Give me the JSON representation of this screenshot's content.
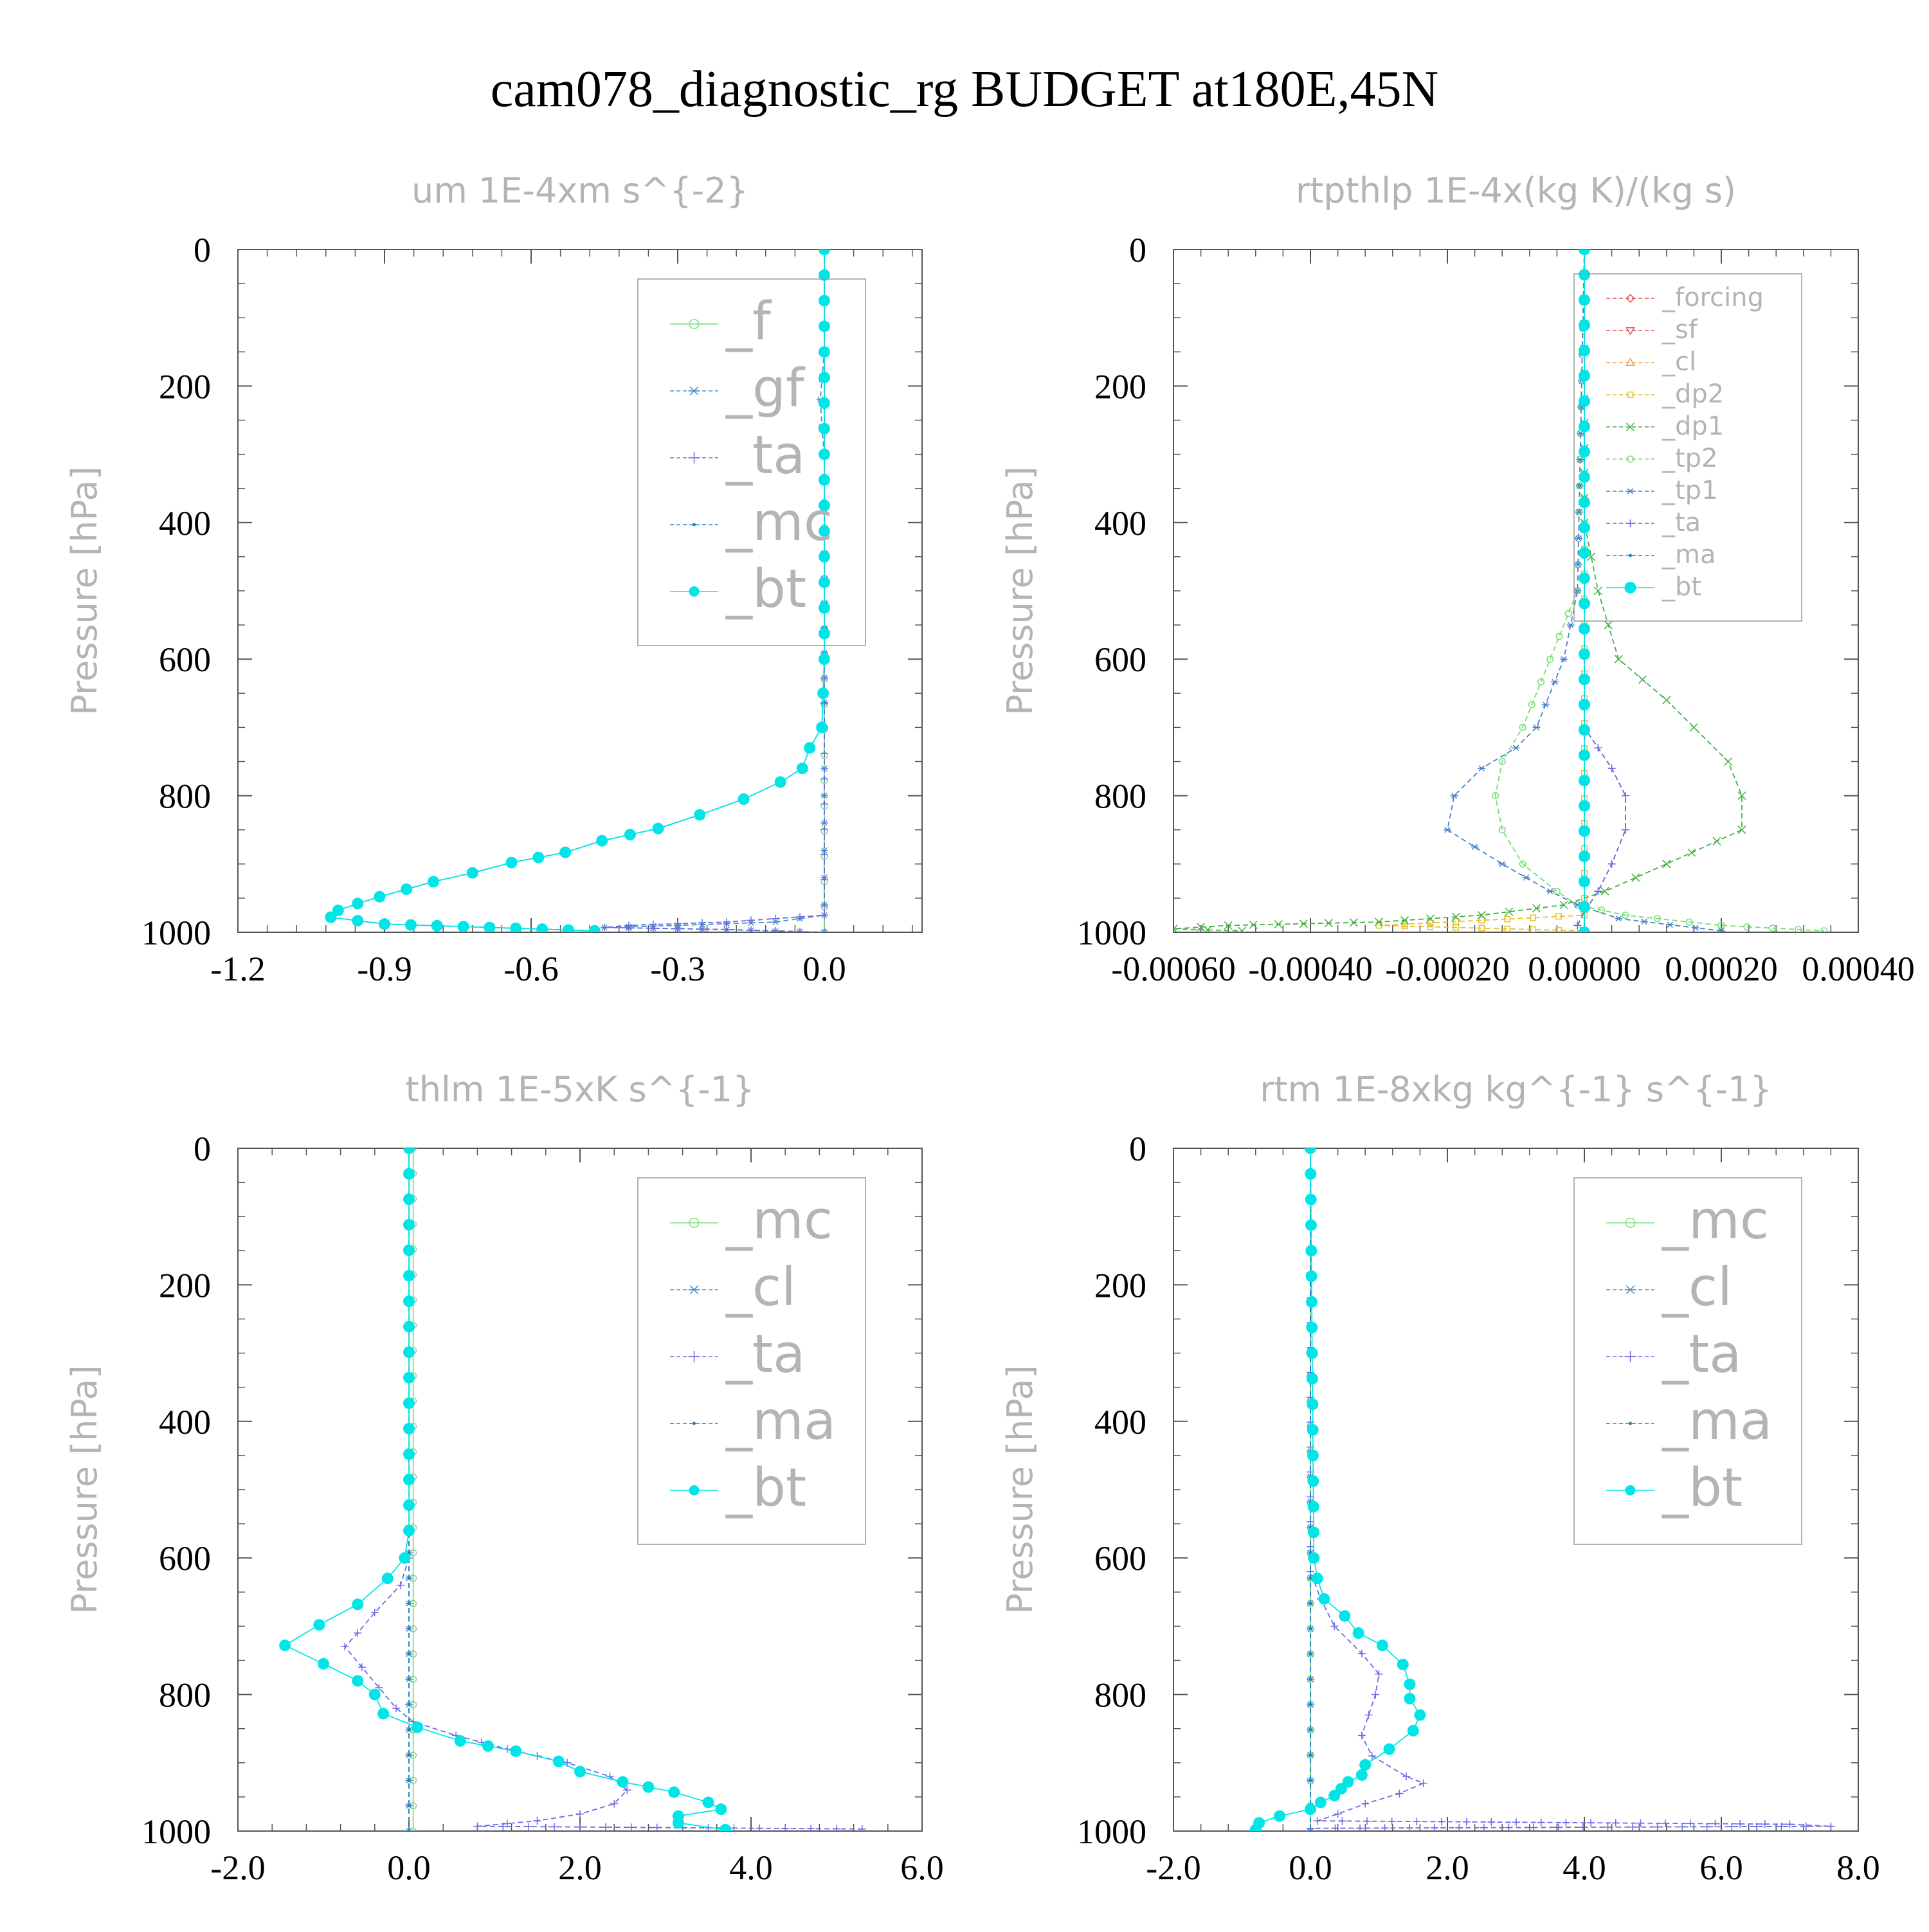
{
  "page_title": "cam078_diagnostic_rg  BUDGET at180E,45N",
  "chart_data": [
    {
      "type": "line",
      "title": "um  1E-4xm s^{-2}",
      "ylabel": "Pressure [hPa]",
      "xlabel": "",
      "xlim": [
        -1.2,
        0.2
      ],
      "ylim": [
        1000,
        0
      ],
      "y_inverted": true,
      "xticks": [
        -1.2,
        -0.9,
        -0.6,
        -0.3,
        0.0
      ],
      "xtick_labels": [
        "-1.2",
        "-0.9",
        "-0.6",
        "-0.3",
        "0.0"
      ],
      "yticks": [
        0,
        200,
        400,
        600,
        800,
        1000
      ],
      "ytick_labels": [
        "0",
        "200",
        "400",
        "600",
        "800",
        "1000"
      ],
      "legend_position": "top-right",
      "legend_font": "large",
      "series": [
        {
          "name": "_f",
          "color": "#7fe07f",
          "marker": "circle-open",
          "dash": "solid",
          "y": [
            0,
            1000
          ],
          "x": [
            0.0,
            0.0
          ]
        },
        {
          "name": "_gf",
          "color": "#4a90c8",
          "marker": "asterisk",
          "dash": "dashed",
          "y": [
            0,
            150,
            190,
            220,
            260,
            300,
            700,
            760,
            960,
            975,
            985,
            990,
            993,
            996,
            1000
          ],
          "x": [
            0.0,
            0.0,
            -0.005,
            -0.008,
            -0.005,
            0.0,
            0.0,
            0.0,
            0.0,
            0.0,
            -0.1,
            -0.3,
            -0.45,
            -0.2,
            0.0
          ]
        },
        {
          "name": "_ta",
          "color": "#6a6ae6",
          "marker": "plus",
          "dash": "dashed",
          "y": [
            0,
            960,
            975,
            985,
            990,
            993,
            996,
            1000
          ],
          "x": [
            0.0,
            0.0,
            0.0,
            -0.2,
            -0.4,
            -0.45,
            -0.2,
            0.0
          ]
        },
        {
          "name": "_mc",
          "color": "#2080c0",
          "marker": "dot",
          "dash": "dashed",
          "y": [
            0,
            600,
            700,
            730,
            760,
            780,
            805,
            828,
            848,
            866,
            883,
            898,
            913,
            926,
            937,
            948,
            958,
            968,
            978,
            988,
            998
          ],
          "x": [
            0.0,
            0.0,
            -0.005,
            -0.03,
            -0.045,
            -0.09,
            -0.165,
            -0.255,
            -0.34,
            -0.455,
            -0.53,
            -0.64,
            -0.72,
            -0.8,
            -0.855,
            -0.91,
            -0.955,
            -0.995,
            -1.01,
            -0.9,
            -0.47
          ]
        },
        {
          "name": "_bt",
          "color": "#00e6e6",
          "marker": "filled-circle",
          "dash": "solid",
          "y": [
            0,
            600,
            700,
            730,
            760,
            780,
            805,
            828,
            848,
            866,
            883,
            898,
            913,
            926,
            937,
            948,
            958,
            968,
            978,
            988,
            998
          ],
          "x": [
            0.0,
            0.0,
            -0.005,
            -0.03,
            -0.045,
            -0.09,
            -0.165,
            -0.255,
            -0.34,
            -0.455,
            -0.53,
            -0.64,
            -0.72,
            -0.8,
            -0.855,
            -0.91,
            -0.955,
            -0.995,
            -1.01,
            -0.9,
            -0.47
          ]
        }
      ]
    },
    {
      "type": "line",
      "title": "rtpthlp  1E-4x(kg K)/(kg s)",
      "ylabel": "Pressure [hPa]",
      "xlabel": "",
      "xlim": [
        -0.0006,
        0.0004
      ],
      "ylim": [
        1000,
        0
      ],
      "y_inverted": true,
      "xticks": [
        -0.0006,
        -0.0004,
        -0.0002,
        0.0,
        0.0002,
        0.0004
      ],
      "xtick_labels": [
        "-0.00060",
        "-0.00040",
        "-0.00020",
        "0.00000",
        "0.00020",
        "0.00040"
      ],
      "yticks": [
        0,
        200,
        400,
        600,
        800,
        1000
      ],
      "ytick_labels": [
        "0",
        "200",
        "400",
        "600",
        "800",
        "1000"
      ],
      "legend_position": "top-right",
      "legend_font": "small",
      "series": [
        {
          "name": "_forcing",
          "color": "#e05050",
          "marker": "diamond-open",
          "dash": "dashed",
          "y": [
            0,
            1000
          ],
          "x": [
            0.0,
            0.0
          ]
        },
        {
          "name": "_sf",
          "color": "#e05050",
          "marker": "triangle-down-open",
          "dash": "dashed",
          "y": [
            0,
            1000
          ],
          "x": [
            0.0,
            0.0
          ]
        },
        {
          "name": "_cl",
          "color": "#f0a040",
          "marker": "triangle-up-open",
          "dash": "dashed",
          "y": [
            0,
            1000
          ],
          "x": [
            0.0,
            0.0
          ]
        },
        {
          "name": "_dp2",
          "color": "#e8c020",
          "marker": "square-open",
          "dash": "dashed",
          "y": [
            0,
            950,
            975,
            990,
            998
          ],
          "x": [
            0.0,
            0.0,
            0.0,
            -0.0003,
            0.0
          ]
        },
        {
          "name": "_dp1",
          "color": "#40b040",
          "marker": "cross",
          "dash": "dashed",
          "y": [
            0,
            400,
            500,
            600,
            660,
            700,
            750,
            800,
            850,
            900,
            940,
            960,
            975,
            985,
            990,
            995,
            998
          ],
          "x": [
            0.0,
            0.0,
            2e-05,
            5e-05,
            0.00012,
            0.00016,
            0.00021,
            0.00023,
            0.00023,
            0.00012,
            3e-05,
            -3e-05,
            -0.00015,
            -0.0003,
            -0.00052,
            -0.0006,
            -0.0005
          ]
        },
        {
          "name": "_tp2",
          "color": "#70e070",
          "marker": "circle-open",
          "dash": "dashed",
          "y": [
            0,
            500,
            600,
            700,
            750,
            800,
            850,
            900,
            940,
            960,
            975,
            990,
            998
          ],
          "x": [
            0.0,
            -1e-05,
            -5e-05,
            -9e-05,
            -0.00012,
            -0.00013,
            -0.00012,
            -9e-05,
            -4e-05,
            -1e-05,
            6e-05,
            0.0002,
            0.00035
          ]
        },
        {
          "name": "_tp1",
          "color": "#4a80d0",
          "marker": "asterisk",
          "dash": "dashed",
          "y": [
            0,
            500,
            600,
            700,
            730,
            760,
            800,
            850,
            900,
            940,
            960,
            980,
            998
          ],
          "x": [
            0.0,
            -1e-05,
            -3e-05,
            -7e-05,
            -0.0001,
            -0.00015,
            -0.00019,
            -0.0002,
            -0.00012,
            -5e-05,
            -1e-05,
            5e-05,
            0.0002
          ]
        },
        {
          "name": "_ta",
          "color": "#6060e0",
          "marker": "plus",
          "dash": "dashed",
          "y": [
            0,
            700,
            760,
            800,
            850,
            900,
            940,
            970,
            990,
            998
          ],
          "x": [
            0.0,
            0.0,
            4e-05,
            6e-05,
            6e-05,
            4e-05,
            2e-05,
            0.0,
            -1e-05,
            0.0
          ]
        },
        {
          "name": "_ma",
          "color": "#2080c0",
          "marker": "dot",
          "dash": "dashed",
          "y": [
            0,
            1000
          ],
          "x": [
            0.0,
            0.0
          ]
        },
        {
          "name": "_bt",
          "color": "#00e6e6",
          "marker": "filled-circle",
          "dash": "solid",
          "y": [
            0,
            1000
          ],
          "x": [
            0.0,
            0.0
          ]
        }
      ]
    },
    {
      "type": "line",
      "title": "thlm  1E-5xK s^{-1}",
      "ylabel": "Pressure [hPa]",
      "xlabel": "",
      "xlim": [
        -2.0,
        6.0
      ],
      "ylim": [
        1000,
        0
      ],
      "y_inverted": true,
      "xticks": [
        -2.0,
        0.0,
        2.0,
        4.0,
        6.0
      ],
      "xtick_labels": [
        "-2.0",
        "0.0",
        "2.0",
        "4.0",
        "6.0"
      ],
      "yticks": [
        0,
        200,
        400,
        600,
        800,
        1000
      ],
      "ytick_labels": [
        "0",
        "200",
        "400",
        "600",
        "800",
        "1000"
      ],
      "legend_position": "top-right",
      "legend_font": "large",
      "series": [
        {
          "name": "_mc",
          "color": "#7fe07f",
          "marker": "circle-open",
          "dash": "solid",
          "y": [
            0,
            1000
          ],
          "x": [
            0.05,
            0.05
          ]
        },
        {
          "name": "_cl",
          "color": "#4a90c8",
          "marker": "asterisk",
          "dash": "dashed",
          "y": [
            0,
            1000
          ],
          "x": [
            0.0,
            0.0
          ]
        },
        {
          "name": "_ta",
          "color": "#6a6ae6",
          "marker": "plus",
          "dash": "dashed",
          "y": [
            0,
            600,
            640,
            680,
            710,
            730,
            760,
            790,
            820,
            840,
            860,
            880,
            900,
            920,
            940,
            960,
            975,
            985,
            993,
            997
          ],
          "x": [
            0.0,
            0.0,
            -0.1,
            -0.4,
            -0.6,
            -0.75,
            -0.55,
            -0.35,
            -0.15,
            0.05,
            0.55,
            1.15,
            1.85,
            2.35,
            2.55,
            2.4,
            2.0,
            1.5,
            0.8,
            5.3
          ]
        },
        {
          "name": "_ma",
          "color": "#2080c0",
          "marker": "dot",
          "dash": "dashed",
          "y": [
            0,
            1000
          ],
          "x": [
            0.0,
            0.0
          ]
        },
        {
          "name": "_bt",
          "color": "#00e6e6",
          "marker": "filled-circle",
          "dash": "solid",
          "y": [
            0,
            560,
            600,
            630,
            668,
            698,
            728,
            755,
            780,
            800,
            828,
            848,
            868,
            883,
            898,
            913,
            928,
            943,
            958,
            968,
            978,
            988,
            998
          ],
          "x": [
            0.0,
            0.0,
            -0.05,
            -0.25,
            -0.6,
            -1.05,
            -1.45,
            -1.0,
            -0.6,
            -0.4,
            -0.3,
            0.1,
            0.6,
            1.25,
            1.75,
            2.0,
            2.5,
            3.1,
            3.5,
            3.65,
            3.15,
            3.15,
            3.7
          ]
        }
      ]
    },
    {
      "type": "line",
      "title": "rtm  1E-8xkg kg^{-1} s^{-1}",
      "ylabel": "Pressure [hPa]",
      "xlabel": "",
      "xlim": [
        -2.0,
        8.0
      ],
      "ylim": [
        1000,
        0
      ],
      "y_inverted": true,
      "xticks": [
        -2.0,
        0.0,
        2.0,
        4.0,
        6.0,
        8.0
      ],
      "xtick_labels": [
        "-2.0",
        "0.0",
        "2.0",
        "4.0",
        "6.0",
        "8.0"
      ],
      "yticks": [
        0,
        200,
        400,
        600,
        800,
        1000
      ],
      "ytick_labels": [
        "0",
        "200",
        "400",
        "600",
        "800",
        "1000"
      ],
      "legend_position": "top-right",
      "legend_font": "large",
      "series": [
        {
          "name": "_mc",
          "color": "#7fe07f",
          "marker": "circle-open",
          "dash": "solid",
          "y": [
            0,
            1000
          ],
          "x": [
            0.0,
            0.0
          ]
        },
        {
          "name": "_cl",
          "color": "#4a90c8",
          "marker": "asterisk",
          "dash": "dashed",
          "y": [
            0,
            1000
          ],
          "x": [
            0.0,
            0.0
          ]
        },
        {
          "name": "_ta",
          "color": "#6a6ae6",
          "marker": "plus",
          "dash": "dashed",
          "y": [
            0,
            620,
            660,
            700,
            740,
            770,
            800,
            830,
            860,
            890,
            920,
            930,
            945,
            960,
            975,
            985,
            990,
            993,
            996
          ],
          "x": [
            0.0,
            0.0,
            0.15,
            0.35,
            0.75,
            1.0,
            0.95,
            0.85,
            0.75,
            0.9,
            1.4,
            1.65,
            1.3,
            0.8,
            0.4,
            0.1,
            7.0,
            7.6,
            0.0
          ]
        },
        {
          "name": "_ma",
          "color": "#2080c0",
          "marker": "dot",
          "dash": "dashed",
          "y": [
            0,
            1000
          ],
          "x": [
            0.0,
            0.0
          ]
        },
        {
          "name": "_bt",
          "color": "#00e6e6",
          "marker": "filled-circle",
          "dash": "solid",
          "y": [
            0,
            600,
            630,
            660,
            685,
            710,
            728,
            756,
            785,
            806,
            830,
            853,
            880,
            903,
            918,
            928,
            938,
            948,
            958,
            968,
            978,
            988,
            998
          ],
          "x": [
            0.0,
            0.05,
            0.1,
            0.2,
            0.5,
            0.7,
            1.05,
            1.35,
            1.45,
            1.45,
            1.6,
            1.5,
            1.15,
            0.8,
            0.75,
            0.55,
            0.45,
            0.35,
            0.15,
            0.0,
            -0.45,
            -0.75,
            -0.8
          ]
        }
      ]
    }
  ]
}
